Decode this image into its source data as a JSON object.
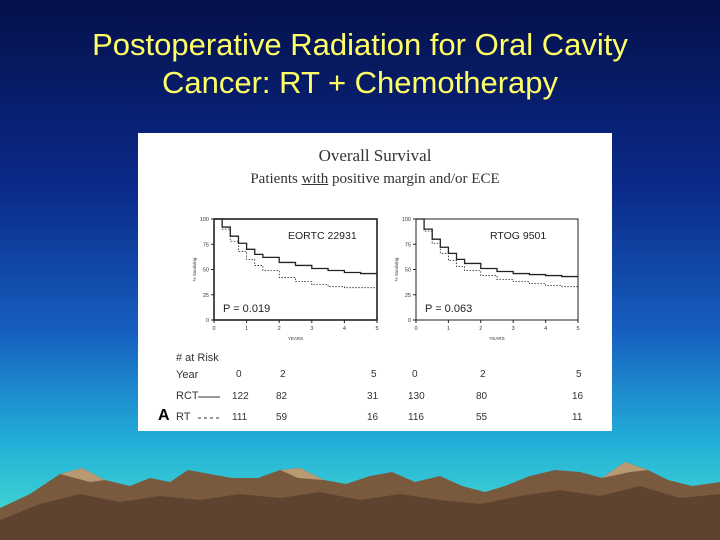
{
  "slide": {
    "title_line1": "Postoperative Radiation for Oral Cavity",
    "title_line2": "Cancer: RT + Chemotherapy",
    "colors": {
      "title": "#ffff66",
      "bg_top": "#05104a",
      "bg_bottom": "#4ce0d0"
    }
  },
  "figure": {
    "title": "Overall Survival",
    "subtitle_pre": "Patients ",
    "subtitle_em": "with",
    "subtitle_post": " positive margin and/or ECE",
    "panel_label": "A"
  },
  "chart_data": [
    {
      "type": "line",
      "title": "EORTC 22931",
      "xlabel": "YEARS",
      "ylabel": "% Surviving",
      "xlim": [
        0,
        5
      ],
      "ylim": [
        0,
        100
      ],
      "x_ticks": [
        0,
        1,
        2,
        3,
        4,
        5
      ],
      "y_ticks": [
        0,
        25,
        50,
        75,
        100
      ],
      "annotation": "P = 0.019",
      "series": [
        {
          "name": "RCT",
          "style": "solid",
          "x": [
            0,
            0.25,
            0.5,
            0.75,
            1,
            1.25,
            1.5,
            2,
            2.5,
            3,
            3.5,
            4,
            4.5,
            5
          ],
          "y": [
            100,
            92,
            83,
            76,
            70,
            65,
            62,
            57,
            54,
            51,
            49,
            47,
            46,
            46
          ]
        },
        {
          "name": "RT",
          "style": "dashed",
          "x": [
            0,
            0.25,
            0.5,
            0.75,
            1,
            1.25,
            1.5,
            2,
            2.5,
            3,
            3.5,
            4,
            4.5,
            5
          ],
          "y": [
            100,
            90,
            78,
            68,
            60,
            54,
            49,
            42,
            38,
            35,
            33,
            32,
            32,
            31
          ]
        }
      ]
    },
    {
      "type": "line",
      "title": "RTOG 9501",
      "xlabel": "YEARS",
      "ylabel": "% Surviving",
      "xlim": [
        0,
        5
      ],
      "ylim": [
        0,
        100
      ],
      "x_ticks": [
        0,
        1,
        2,
        3,
        4,
        5
      ],
      "y_ticks": [
        0,
        25,
        50,
        75,
        100
      ],
      "annotation": "P = 0.063",
      "series": [
        {
          "name": "RCT",
          "style": "solid",
          "x": [
            0,
            0.25,
            0.5,
            0.75,
            1,
            1.25,
            1.5,
            2,
            2.5,
            3,
            3.5,
            4,
            4.5,
            5
          ],
          "y": [
            100,
            90,
            80,
            72,
            66,
            60,
            56,
            51,
            48,
            46,
            45,
            44,
            43,
            43
          ]
        },
        {
          "name": "RT",
          "style": "dashed",
          "x": [
            0,
            0.25,
            0.5,
            0.75,
            1,
            1.25,
            1.5,
            2,
            2.5,
            3,
            3.5,
            4,
            4.5,
            5
          ],
          "y": [
            100,
            88,
            76,
            66,
            59,
            53,
            49,
            44,
            40,
            38,
            36,
            34,
            33,
            33
          ]
        }
      ]
    }
  ],
  "at_risk": {
    "header": "# at Risk",
    "year_label": "Year",
    "years": [
      "0",
      "2",
      "5",
      "0",
      "2",
      "5"
    ],
    "rows": [
      {
        "label": "RCT",
        "values": [
          "122",
          "82",
          "31",
          "130",
          "80",
          "16"
        ]
      },
      {
        "label": "RT",
        "values": [
          "111",
          "59",
          "16",
          "116",
          "55",
          "11"
        ]
      }
    ]
  }
}
